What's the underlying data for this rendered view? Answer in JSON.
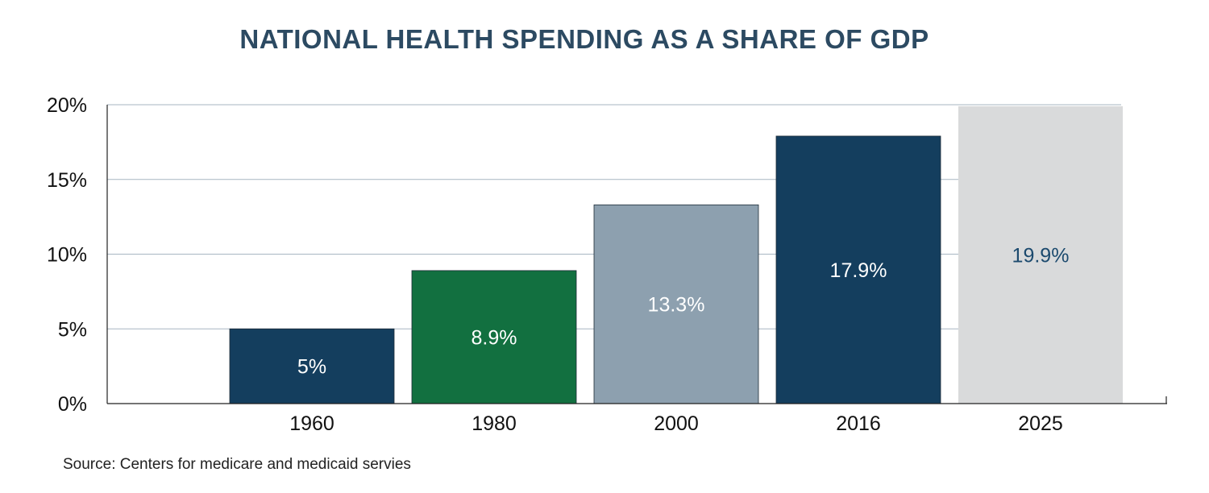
{
  "chart_data": {
    "type": "bar",
    "title": "NATIONAL HEALTH SPENDING AS A SHARE OF GDP",
    "categories": [
      "1960",
      "1980",
      "2000",
      "2016",
      "2025"
    ],
    "values": [
      5,
      8.9,
      13.3,
      17.9,
      19.9
    ],
    "data_labels": [
      "5%",
      "8.9%",
      "13.3%",
      "17.9%",
      "19.9%"
    ],
    "bar_colors": [
      "#143e5e",
      "#127040",
      "#8da0af",
      "#143e5e",
      "#d9dadb"
    ],
    "label_colors": [
      "#ffffff",
      "#ffffff",
      "#ffffff",
      "#ffffff",
      "#1c4a6e"
    ],
    "y_ticks": [
      "0%",
      "5%",
      "10%",
      "15%",
      "20%"
    ],
    "ylim": [
      0,
      20
    ],
    "xlabel": "",
    "ylabel": "",
    "grid": true,
    "gridline_color": "#a7b6c2"
  },
  "source": "Source: Centers for medicare and medicaid servies"
}
